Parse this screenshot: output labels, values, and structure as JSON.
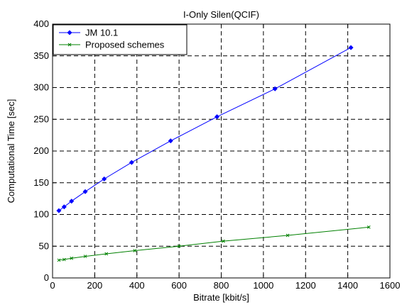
{
  "chart_data": {
    "type": "line",
    "title": "I-Only Silen(QCIF)",
    "xlabel": "Bitrate [kbit/s]",
    "ylabel": "Computational Time [sec]",
    "xlim": [
      0,
      1600
    ],
    "ylim": [
      0,
      400
    ],
    "xticks": [
      0,
      200,
      400,
      600,
      800,
      1000,
      1200,
      1400,
      1600
    ],
    "yticks": [
      0,
      50,
      100,
      150,
      200,
      250,
      300,
      350,
      400
    ],
    "grid": true,
    "legend_position": "top-left",
    "series": [
      {
        "name": "JM 10.1",
        "color": "#0000ff",
        "marker": "diamond",
        "x": [
          30,
          55,
          90,
          155,
          245,
          375,
          560,
          780,
          1055,
          1415
        ],
        "y": [
          106,
          112,
          121,
          136,
          156,
          182,
          216,
          254,
          298,
          363
        ]
      },
      {
        "name": "Proposed schemes",
        "color": "#008000",
        "marker": "x",
        "x": [
          30,
          55,
          90,
          155,
          255,
          390,
          600,
          810,
          1115,
          1500
        ],
        "y": [
          28,
          29,
          31,
          34,
          38,
          43,
          50,
          58,
          67,
          80
        ]
      }
    ]
  }
}
